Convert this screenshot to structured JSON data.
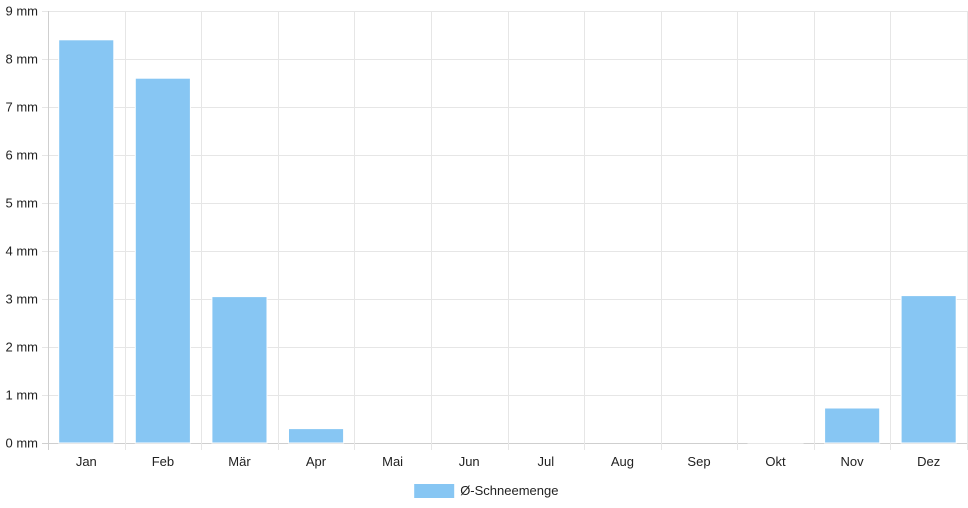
{
  "chart_data": {
    "type": "bar",
    "categories": [
      "Jan",
      "Feb",
      "Mär",
      "Apr",
      "Mai",
      "Jun",
      "Jul",
      "Aug",
      "Sep",
      "Okt",
      "Nov",
      "Dez"
    ],
    "series": [
      {
        "name": "Ø-Schneemenge",
        "values": [
          8.4,
          7.6,
          3.05,
          0.3,
          0,
          0,
          0,
          0,
          0,
          0.02,
          0.73,
          3.07
        ],
        "color": "#87c6f3"
      }
    ],
    "ylim": [
      0,
      9
    ],
    "yticks": [
      0,
      1,
      2,
      3,
      4,
      5,
      6,
      7,
      8,
      9
    ],
    "y_unit": "mm",
    "grid": true,
    "legend_position": "bottom"
  }
}
